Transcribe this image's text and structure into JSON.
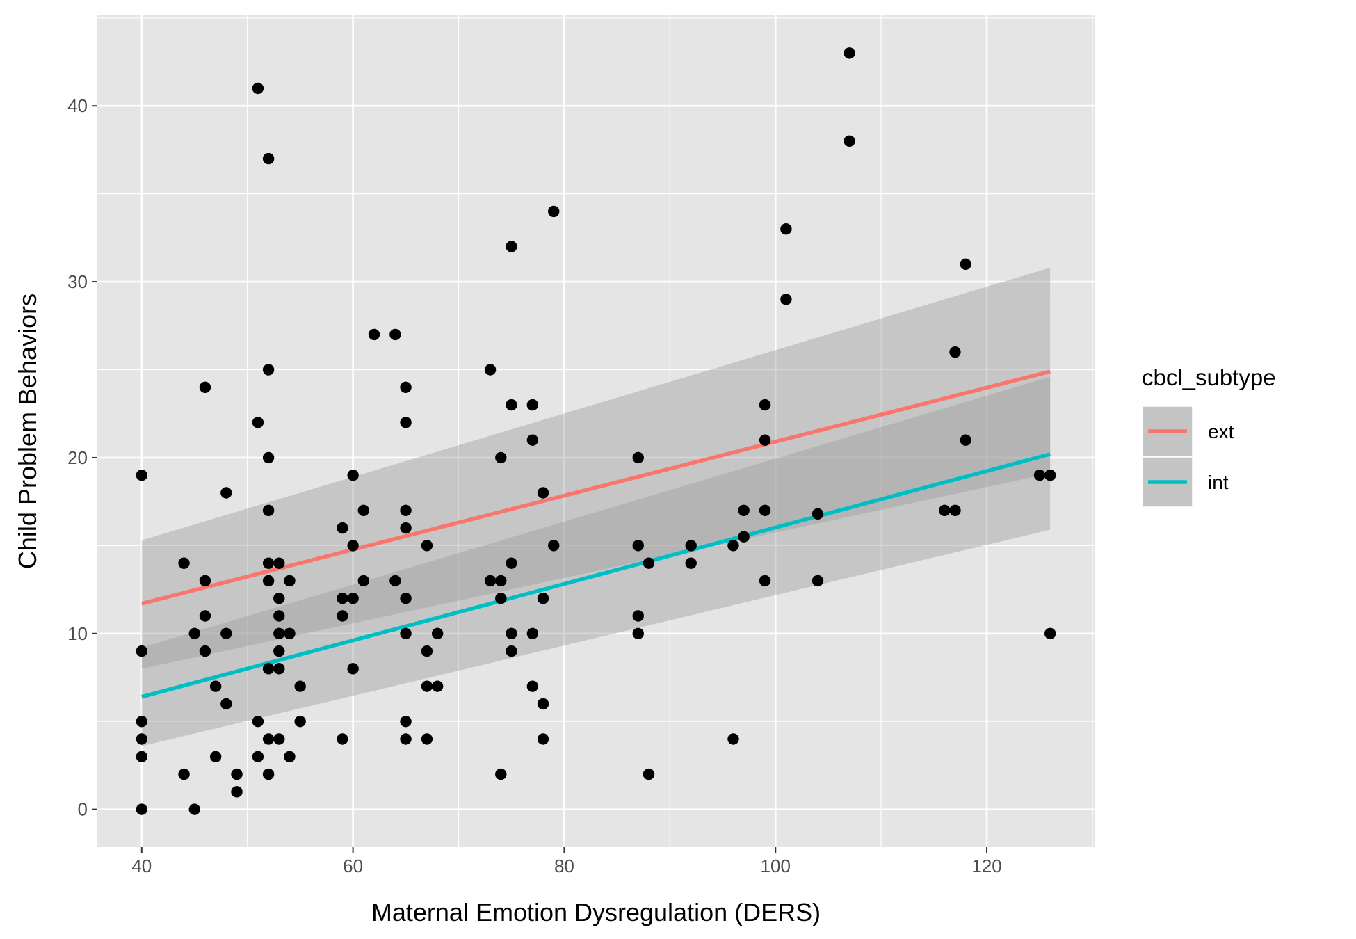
{
  "chart_data": {
    "type": "scatter",
    "title": "",
    "xlabel": "Maternal Emotion Dysregulation (DERS)",
    "ylabel": "Child Problem Behaviors",
    "xlim": [
      35.8,
      130.2
    ],
    "ylim": [
      -2.15,
      45.15
    ],
    "x_ticks": [
      40,
      60,
      80,
      100,
      120
    ],
    "y_ticks": [
      0,
      10,
      20,
      30,
      40
    ],
    "x_tick_labels": [
      "40",
      "60",
      "80",
      "100",
      "120"
    ],
    "y_tick_labels": [
      "0",
      "10",
      "20",
      "30",
      "40"
    ],
    "grid": true,
    "background": "#e5e5e5",
    "legend": {
      "title": "cbcl_subtype",
      "position": "right",
      "entries": [
        {
          "label": "ext",
          "color": "#f8766d"
        },
        {
          "label": "int",
          "color": "#00bfc4"
        }
      ]
    },
    "points": [
      [
        40,
        19
      ],
      [
        40,
        9
      ],
      [
        40,
        5
      ],
      [
        40,
        4
      ],
      [
        40,
        3
      ],
      [
        40,
        0
      ],
      [
        44,
        14
      ],
      [
        44,
        2
      ],
      [
        45,
        10
      ],
      [
        45,
        0
      ],
      [
        46,
        24
      ],
      [
        46,
        13
      ],
      [
        46,
        11
      ],
      [
        46,
        9
      ],
      [
        47,
        7
      ],
      [
        47,
        3
      ],
      [
        48,
        18
      ],
      [
        48,
        10
      ],
      [
        48,
        6
      ],
      [
        49,
        2
      ],
      [
        49,
        1
      ],
      [
        51,
        41
      ],
      [
        51,
        22
      ],
      [
        51,
        5
      ],
      [
        51,
        3
      ],
      [
        52,
        37
      ],
      [
        52,
        25
      ],
      [
        52,
        20
      ],
      [
        52,
        17
      ],
      [
        52,
        14
      ],
      [
        52,
        13
      ],
      [
        52,
        8
      ],
      [
        52,
        4
      ],
      [
        52,
        2
      ],
      [
        53,
        14
      ],
      [
        53,
        12
      ],
      [
        53,
        11
      ],
      [
        53,
        10
      ],
      [
        53,
        9
      ],
      [
        53,
        8
      ],
      [
        53,
        4
      ],
      [
        54,
        13
      ],
      [
        54,
        10
      ],
      [
        54,
        3
      ],
      [
        55,
        7
      ],
      [
        55,
        5
      ],
      [
        59,
        16
      ],
      [
        59,
        12
      ],
      [
        59,
        11
      ],
      [
        59,
        4
      ],
      [
        60,
        19
      ],
      [
        60,
        15
      ],
      [
        60,
        12
      ],
      [
        60,
        8
      ],
      [
        61,
        17
      ],
      [
        61,
        13
      ],
      [
        62,
        27
      ],
      [
        64,
        27
      ],
      [
        64,
        13
      ],
      [
        65,
        24
      ],
      [
        65,
        22
      ],
      [
        65,
        17
      ],
      [
        65,
        16
      ],
      [
        65,
        12
      ],
      [
        65,
        10
      ],
      [
        65,
        5
      ],
      [
        65,
        4
      ],
      [
        67,
        15
      ],
      [
        67,
        9
      ],
      [
        67,
        7
      ],
      [
        67,
        4
      ],
      [
        68,
        10
      ],
      [
        68,
        7
      ],
      [
        73,
        25
      ],
      [
        73,
        13
      ],
      [
        74,
        20
      ],
      [
        74,
        13
      ],
      [
        74,
        12
      ],
      [
        74,
        2
      ],
      [
        75,
        32
      ],
      [
        75,
        23
      ],
      [
        75,
        14
      ],
      [
        75,
        10
      ],
      [
        75,
        9
      ],
      [
        77,
        23
      ],
      [
        77,
        21
      ],
      [
        77,
        10
      ],
      [
        77,
        7
      ],
      [
        78,
        18
      ],
      [
        78,
        12
      ],
      [
        78,
        6
      ],
      [
        78,
        4
      ],
      [
        79,
        34
      ],
      [
        79,
        15
      ],
      [
        87,
        20
      ],
      [
        87,
        15
      ],
      [
        87,
        11
      ],
      [
        87,
        10
      ],
      [
        88,
        14
      ],
      [
        88,
        2
      ],
      [
        92,
        15
      ],
      [
        92,
        14
      ],
      [
        96,
        15
      ],
      [
        96,
        4
      ],
      [
        97,
        17
      ],
      [
        97,
        15.5
      ],
      [
        99,
        23
      ],
      [
        99,
        21
      ],
      [
        99,
        17
      ],
      [
        99,
        13
      ],
      [
        101,
        33
      ],
      [
        101,
        29
      ],
      [
        104,
        16.8
      ],
      [
        104,
        13
      ],
      [
        107,
        43
      ],
      [
        107,
        38
      ],
      [
        116,
        17
      ],
      [
        117,
        26
      ],
      [
        117,
        17
      ],
      [
        118,
        31
      ],
      [
        118,
        21
      ],
      [
        125,
        19
      ],
      [
        126,
        19
      ],
      [
        126,
        10
      ]
    ],
    "series": [
      {
        "name": "ext",
        "color": "#f8766d",
        "type": "line",
        "x": [
          40,
          126
        ],
        "y": [
          11.7,
          24.9
        ],
        "ci_lower": [
          8.0,
          19.1
        ],
        "ci_upper": [
          15.3,
          30.8
        ]
      },
      {
        "name": "int",
        "color": "#00bfc4",
        "type": "line",
        "x": [
          40,
          126
        ],
        "y": [
          6.4,
          20.2
        ],
        "ci_lower": [
          3.6,
          15.9
        ],
        "ci_upper": [
          9.2,
          24.6
        ]
      }
    ]
  }
}
